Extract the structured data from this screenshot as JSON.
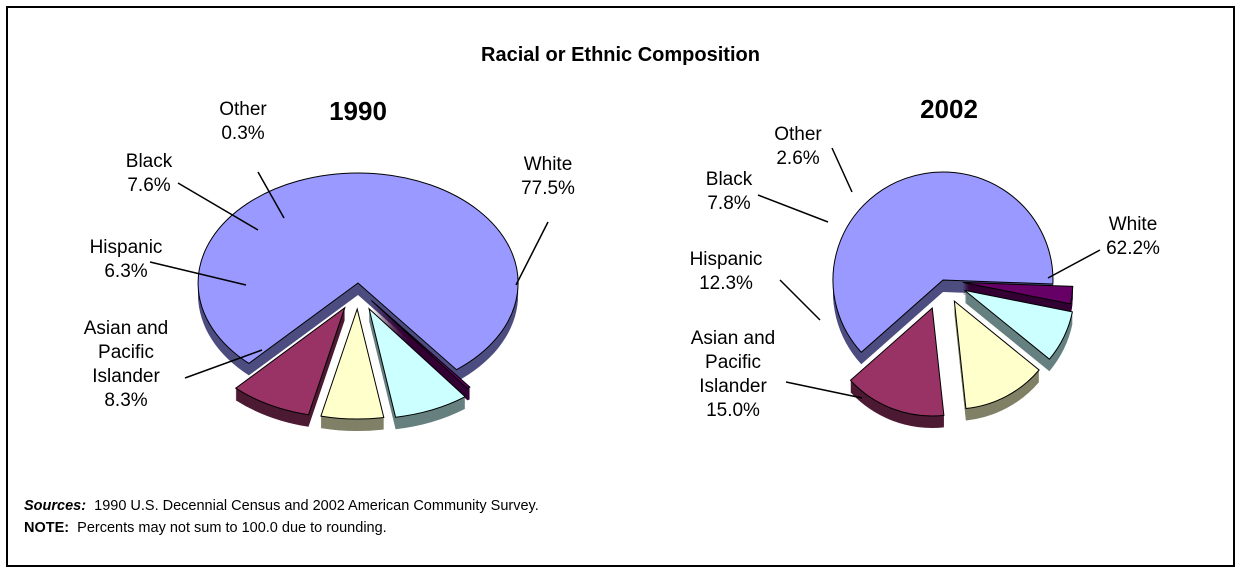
{
  "title": "Racial or Ethnic Composition",
  "chart_data": [
    {
      "type": "pie",
      "title": "1990",
      "slices": [
        {
          "label": "White",
          "value": 77.5,
          "display": "77.5%",
          "color": "#9999ff"
        },
        {
          "label": "Other",
          "value": 0.3,
          "display": "0.3%",
          "color": "#660066"
        },
        {
          "label": "Black",
          "value": 7.6,
          "display": "7.6%",
          "color": "#ccffff"
        },
        {
          "label": "Hispanic",
          "value": 6.3,
          "display": "6.3%",
          "color": "#ffffcc"
        },
        {
          "label": "Asian and Pacific Islander",
          "value": 8.3,
          "display": "8.3%",
          "color": "#993366"
        }
      ]
    },
    {
      "type": "pie",
      "title": "2002",
      "slices": [
        {
          "label": "White",
          "value": 62.2,
          "display": "62.2%",
          "color": "#9999ff"
        },
        {
          "label": "Other",
          "value": 2.6,
          "display": "2.6%",
          "color": "#660066"
        },
        {
          "label": "Black",
          "value": 7.8,
          "display": "7.8%",
          "color": "#ccffff"
        },
        {
          "label": "Hispanic",
          "value": 12.3,
          "display": "12.3%",
          "color": "#ffffcc"
        },
        {
          "label": "Asian and Pacific Islander",
          "value": 15.0,
          "display": "15.0%",
          "color": "#993366"
        }
      ]
    }
  ],
  "footnotes": {
    "sources_label": "Sources:",
    "sources_text": "1990 U.S. Decennial Census and 2002 American Community Survey.",
    "note_label": "NOTE:",
    "note_text": "Percents may not sum to 100.0 due to rounding."
  }
}
